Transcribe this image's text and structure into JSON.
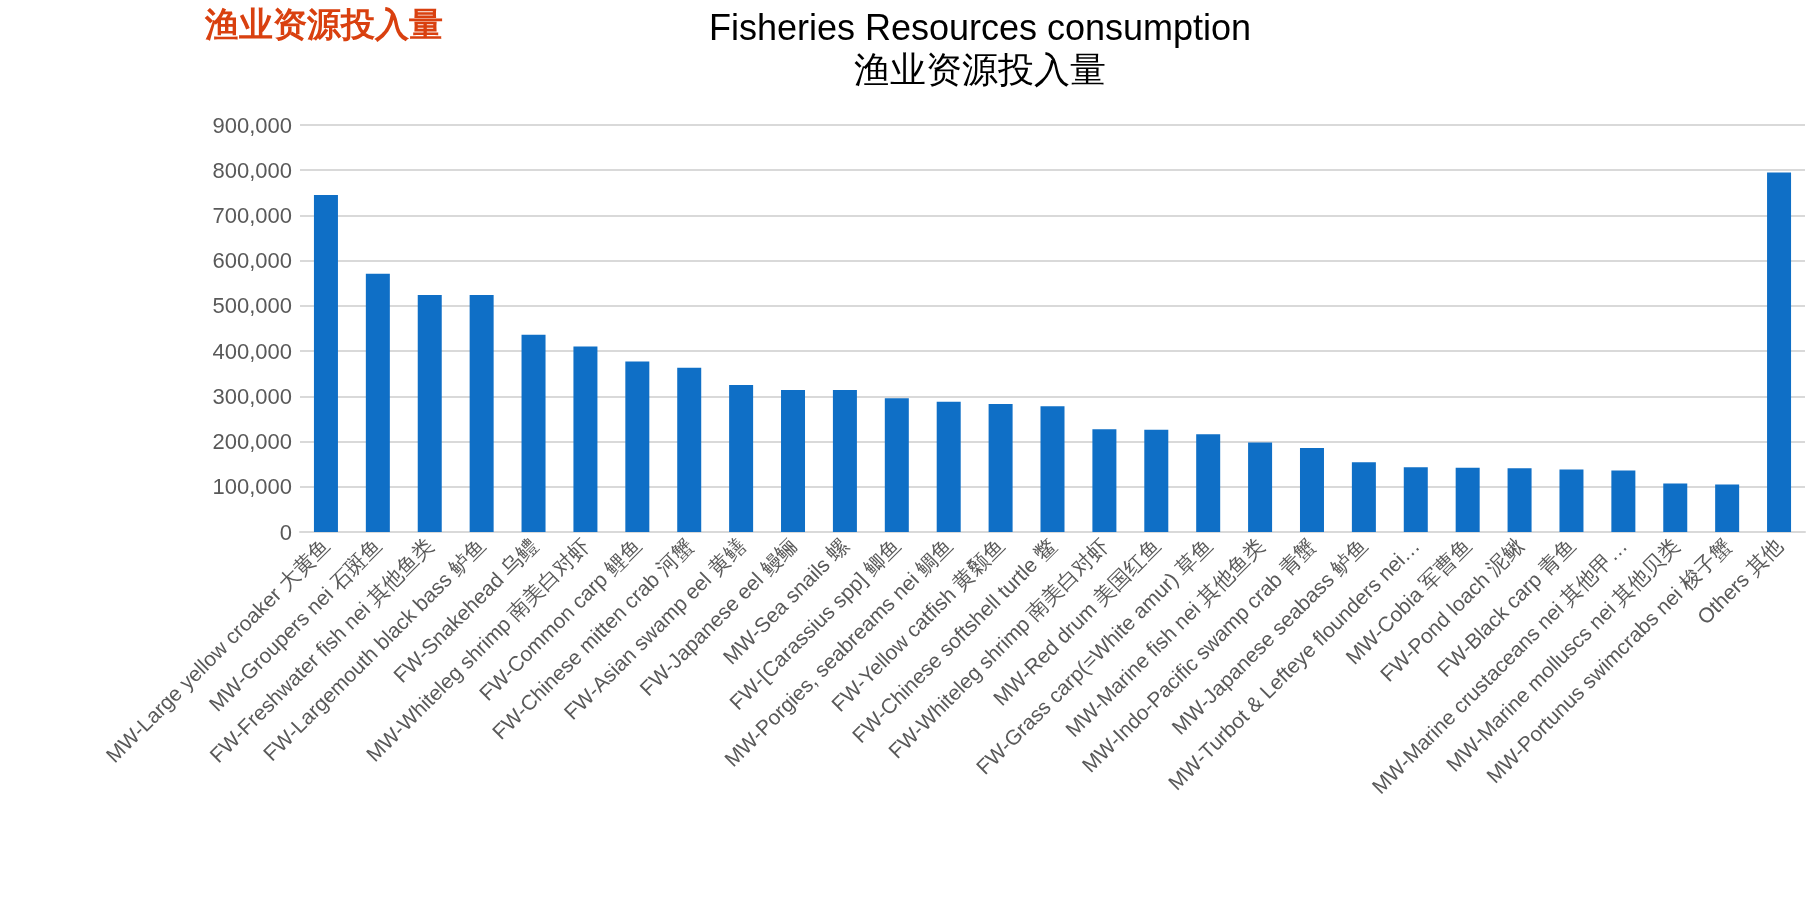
{
  "chart_data": {
    "type": "bar",
    "title": "Fisheries Resources consumption",
    "subtitle": "渔业资源投入量",
    "annotations": [
      "渔业资源投入量"
    ],
    "categories": [
      "MW-Large yellow croaker 大黄鱼",
      "MW-Groupers nei 石斑鱼",
      "FW-Freshwater fish nei 其他鱼类",
      "FW-Largemouth black bass 鲈鱼",
      "FW-Snakehead 乌鳢",
      "MW-Whiteleg shrimp 南美白对虾",
      "FW-Common carp 鲤鱼",
      "FW-Chinese mitten crab 河蟹",
      "FW-Asian swamp eel 黄鳝",
      "FW-Japanese eel 鳗鲡",
      "MW-Sea snails 螺",
      "FW-[Carassius spp] 鲫鱼",
      "MW-Porgies, seabreams nei 鲷鱼",
      "FW-Yellow catfish 黄颡鱼",
      "FW-Chinese softshell turtle 鳖",
      "FW-Whiteleg shrimp 南美白对虾",
      "MW-Red drum 美国红鱼",
      "FW-Grass carp(=White amur) 草鱼",
      "MW-Marine fish nei 其他鱼类",
      "MW-Indo-Pacific swamp crab 青蟹",
      "MW-Japanese seabass 鲈鱼",
      "MW-Turbot & Lefteye flounders nei…",
      "MW-Cobia 军曹鱼",
      "FW-Pond loach 泥鳅",
      "FW-Black carp 青鱼",
      "MW-Marine crustaceans nei 其他甲…",
      "MW-Marine molluscs nei 其他贝类",
      "MW-Portunus swimcrabs nei 梭子蟹",
      "Others 其他"
    ],
    "values": [
      745000,
      571000,
      524000,
      524000,
      436000,
      410000,
      377000,
      363000,
      325000,
      314000,
      314000,
      296000,
      288000,
      283000,
      278000,
      227000,
      226000,
      216000,
      198000,
      186000,
      154000,
      143000,
      142000,
      141000,
      138000,
      136000,
      107000,
      105000,
      795000
    ],
    "color": "#0f6fc6",
    "ylim": [
      0,
      900000
    ],
    "yticks": [
      0,
      {
        "value": 100000,
        "label": "100,000"
      },
      {
        "value": 200000,
        "label": "200,000"
      },
      {
        "value": 300000,
        "label": "300,000"
      },
      {
        "value": 400000,
        "label": "400,000"
      },
      {
        "value": 500000,
        "label": "500,000"
      },
      {
        "value": 600000,
        "label": "600,000"
      },
      {
        "value": 700000,
        "label": "700,000"
      },
      {
        "value": 800000,
        "label": "800,000"
      },
      {
        "value": 900000,
        "label": "900,000"
      }
    ],
    "grid": "y"
  }
}
